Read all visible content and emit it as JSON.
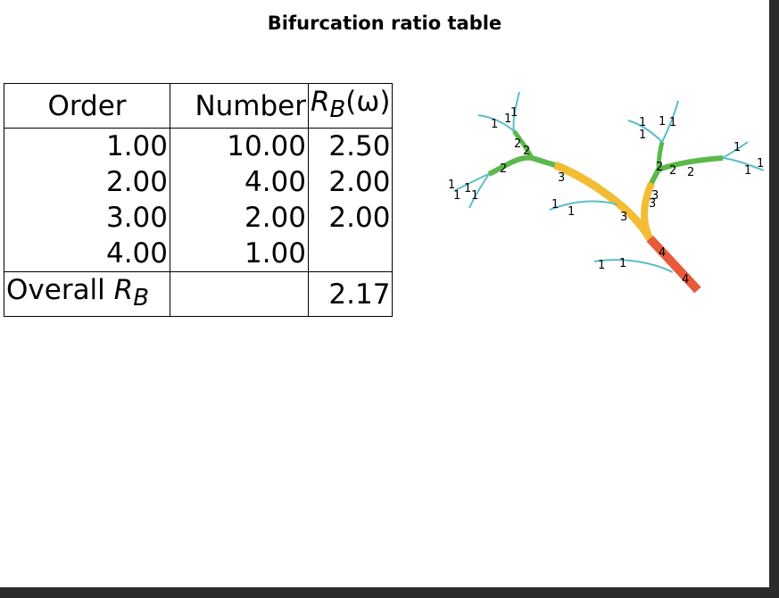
{
  "title": "Bifurcation ratio table",
  "table": {
    "headers": {
      "order": "Order",
      "number": "Number",
      "ratio_symbol": "R",
      "ratio_sub": "B",
      "ratio_arg": "(ω)"
    },
    "rows": [
      {
        "order": "1.00",
        "number": "10.00",
        "ratio": "2.50"
      },
      {
        "order": "2.00",
        "number": "4.00",
        "ratio": "2.00"
      },
      {
        "order": "3.00",
        "number": "2.00",
        "ratio": "2.00"
      },
      {
        "order": "4.00",
        "number": "1.00",
        "ratio": ""
      }
    ],
    "overall": {
      "label": "Overall ",
      "symbol": "R",
      "sub": "B",
      "value": "2.17"
    }
  },
  "stream_colors": {
    "order1": "#5bbdc7",
    "order2": "#5cb84a",
    "order3": "#f2bd33",
    "order4": "#e85a3c"
  },
  "stream_labels": [
    "1",
    "1",
    "1",
    "1",
    "1",
    "1",
    "1",
    "1",
    "1",
    "1",
    "1",
    "1",
    "1",
    "1",
    "1",
    "1",
    "1",
    "1",
    "2",
    "2",
    "2",
    "2",
    "2",
    "2",
    "3",
    "3",
    "3",
    "3",
    "4",
    "4"
  ]
}
